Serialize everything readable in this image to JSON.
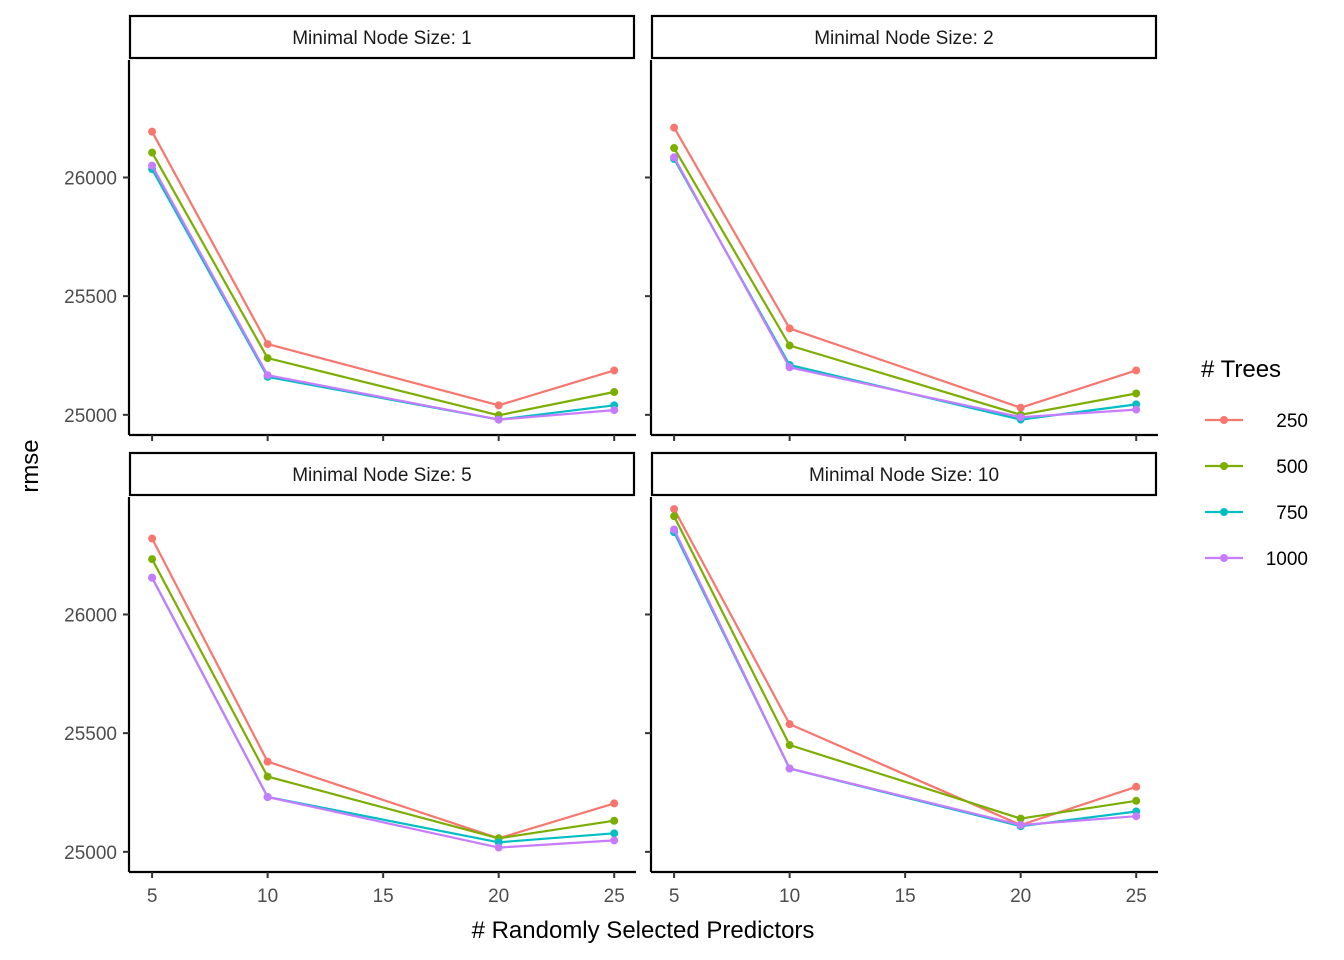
{
  "chart_data": {
    "type": "line",
    "facet_label_prefix": "Minimal Node Size: ",
    "xlabel": "# Randomly Selected Predictors",
    "ylabel": "rmse",
    "x_ticks": [
      5,
      10,
      15,
      20,
      25
    ],
    "xlim": [
      4,
      25.9
    ],
    "y_ticks": [
      25000,
      25500,
      26000
    ],
    "legend": {
      "title": "# Trees",
      "position": "right",
      "entries": [
        {
          "label": "250",
          "color": "#F8766D"
        },
        {
          "label": "500",
          "color": "#7CAE00"
        },
        {
          "label": "750",
          "color": "#00BFC4"
        },
        {
          "label": "1000",
          "color": "#C77CFF"
        }
      ]
    },
    "x": [
      5,
      10,
      20,
      25
    ],
    "panels": [
      {
        "node_size": "1",
        "ylim": [
          24915,
          26495
        ],
        "series": [
          {
            "name": "250",
            "values": [
              26193,
              25298,
              25040,
              25187
            ]
          },
          {
            "name": "500",
            "values": [
              26105,
              25239,
              24998,
              25096
            ]
          },
          {
            "name": "750",
            "values": [
              26035,
              25160,
              24980,
              25040
            ]
          },
          {
            "name": "1000",
            "values": [
              26050,
              25167,
              24980,
              25020
            ]
          }
        ]
      },
      {
        "node_size": "2",
        "ylim": [
          24915,
          26495
        ],
        "series": [
          {
            "name": "250",
            "values": [
              26210,
              25364,
              25030,
              25187
            ]
          },
          {
            "name": "500",
            "values": [
              26124,
              25292,
              25000,
              25090
            ]
          },
          {
            "name": "750",
            "values": [
              26078,
              25210,
              24980,
              25044
            ]
          },
          {
            "name": "1000",
            "values": [
              26085,
              25200,
              24990,
              25022
            ]
          }
        ]
      },
      {
        "node_size": "5",
        "ylim": [
          24915,
          26495
        ],
        "series": [
          {
            "name": "250",
            "values": [
              26320,
              25380,
              25057,
              25204
            ]
          },
          {
            "name": "500",
            "values": [
              26233,
              25317,
              25057,
              25131
            ]
          },
          {
            "name": "750",
            "values": [
              26155,
              25231,
              25040,
              25078
            ]
          },
          {
            "name": "1000",
            "values": [
              26155,
              25231,
              25018,
              25048
            ]
          }
        ]
      },
      {
        "node_size": "10",
        "ylim": [
          24915,
          26495
        ],
        "series": [
          {
            "name": "250",
            "values": [
              26444,
              25538,
              25113,
              25274
            ]
          },
          {
            "name": "500",
            "values": [
              26414,
              25450,
              25140,
              25215
            ]
          },
          {
            "name": "750",
            "values": [
              26347,
              25351,
              25108,
              25170
            ]
          },
          {
            "name": "1000",
            "values": [
              26358,
              25351,
              25113,
              25150
            ]
          }
        ]
      }
    ]
  }
}
